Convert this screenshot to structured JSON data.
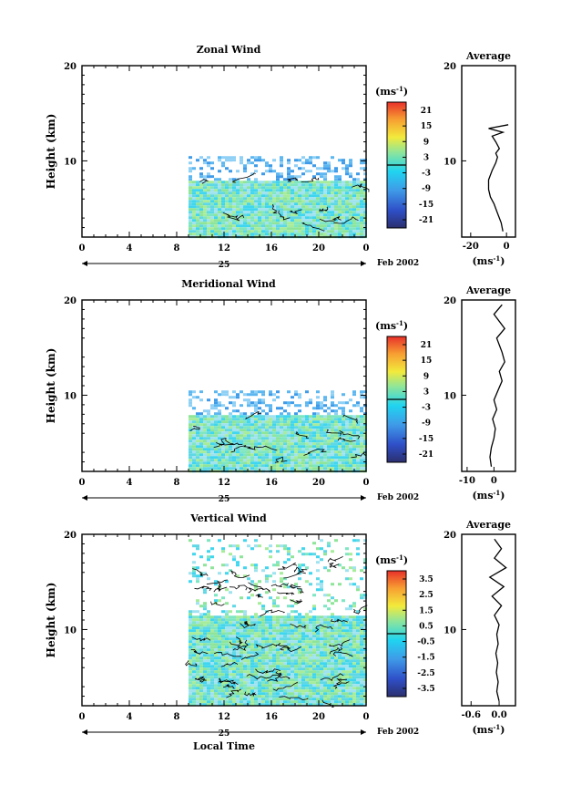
{
  "chart_data": [
    {
      "type": "heatmap",
      "title": "Zonal Wind",
      "ylabel": "Height (km)",
      "x_ticks": [
        "0",
        "4",
        "8",
        "12",
        "16",
        "20",
        "0"
      ],
      "y_ticks": [
        "20",
        "10"
      ],
      "xlim": [
        0,
        24
      ],
      "ylim": [
        2,
        20
      ],
      "day_label": "25",
      "date_label": "Feb 2002",
      "data_start_hour": 9,
      "data_max_height_km": 10.5,
      "colorbar": {
        "unit_prefix": "(ms",
        "unit_exp": "-1",
        "unit_suffix": ")",
        "ticks": [
          "21",
          "15",
          "9",
          "3",
          "-3",
          "-9",
          "-15",
          "-21"
        ]
      },
      "average": {
        "title": "Average",
        "x_ticks": [
          "-20",
          "0"
        ],
        "y_ticks": [
          "20",
          "10"
        ],
        "xlim": [
          -25,
          5
        ],
        "unit_prefix": "(ms",
        "unit_exp": "-1",
        "unit_suffix": ")",
        "profile": [
          [
            -2,
            2.6
          ],
          [
            -3,
            3.5
          ],
          [
            -5,
            4.5
          ],
          [
            -7,
            5.5
          ],
          [
            -9,
            6.2
          ],
          [
            -10,
            7
          ],
          [
            -10,
            8
          ],
          [
            -8,
            9
          ],
          [
            -6,
            9.8
          ],
          [
            -5,
            10.4
          ],
          [
            -6,
            10.8
          ],
          [
            -4,
            11.3
          ],
          [
            -6,
            12
          ],
          [
            -8,
            12.6
          ],
          [
            -2,
            13
          ],
          [
            -10,
            13.4
          ],
          [
            1,
            13.8
          ]
        ]
      }
    },
    {
      "type": "heatmap",
      "title": "Meridional Wind",
      "ylabel": "Height (km)",
      "x_ticks": [
        "0",
        "4",
        "8",
        "12",
        "16",
        "20",
        "0"
      ],
      "y_ticks": [
        "20",
        "10"
      ],
      "xlim": [
        0,
        24
      ],
      "ylim": [
        2,
        20
      ],
      "day_label": "25",
      "date_label": "Feb 2002",
      "data_start_hour": 9,
      "data_max_height_km": 10.5,
      "colorbar": {
        "unit_prefix": "(ms",
        "unit_exp": "-1",
        "unit_suffix": ")",
        "ticks": [
          "21",
          "15",
          "9",
          "3",
          "-3",
          "-9",
          "-15",
          "-21"
        ]
      },
      "average": {
        "title": "Average",
        "x_ticks": [
          "-10",
          "0"
        ],
        "y_ticks": [
          "20",
          "10"
        ],
        "xlim": [
          -12,
          8
        ],
        "unit_prefix": "(ms",
        "unit_exp": "-1",
        "unit_suffix": ")",
        "profile": [
          [
            -1,
            2.5
          ],
          [
            -1.5,
            3.5
          ],
          [
            -1,
            4.5
          ],
          [
            0,
            5.5
          ],
          [
            0.5,
            6.5
          ],
          [
            -0.5,
            7.5
          ],
          [
            1,
            8.5
          ],
          [
            0,
            9.5
          ],
          [
            1.5,
            10.5
          ],
          [
            3,
            11.5
          ],
          [
            2,
            12.5
          ],
          [
            4,
            13.5
          ],
          [
            3,
            14.5
          ],
          [
            1,
            16
          ],
          [
            4,
            17
          ],
          [
            0,
            18.5
          ],
          [
            3,
            19.5
          ]
        ]
      }
    },
    {
      "type": "heatmap",
      "title": "Vertical Wind",
      "ylabel": "Height (km)",
      "xlabel": "Local Time",
      "x_ticks": [
        "0",
        "4",
        "8",
        "12",
        "16",
        "20",
        "0"
      ],
      "y_ticks": [
        "20",
        "10"
      ],
      "xlim": [
        0,
        24
      ],
      "ylim": [
        2,
        20
      ],
      "day_label": "25",
      "date_label": "Feb 2002",
      "data_start_hour": 9,
      "data_max_height_km": 19.5,
      "colorbar": {
        "unit_prefix": "(ms",
        "unit_exp": "-1",
        "unit_suffix": ")",
        "ticks": [
          "3.5",
          "2.5",
          "1.5",
          "0.5",
          "-0.5",
          "-1.5",
          "-2.5",
          "-3.5"
        ]
      },
      "average": {
        "title": "Average",
        "x_ticks": [
          "-0.6",
          "0.0"
        ],
        "y_ticks": [
          "20",
          "10"
        ],
        "xlim": [
          -0.8,
          0.35
        ],
        "unit_prefix": "(ms",
        "unit_exp": "-1",
        "unit_suffix": ")",
        "profile": [
          [
            0.0,
            2.5
          ],
          [
            -0.05,
            3.5
          ],
          [
            -0.02,
            4.5
          ],
          [
            -0.06,
            5.5
          ],
          [
            -0.03,
            6.5
          ],
          [
            -0.07,
            7.5
          ],
          [
            -0.02,
            8.5
          ],
          [
            -0.05,
            9.5
          ],
          [
            0.0,
            10.5
          ],
          [
            -0.1,
            11.5
          ],
          [
            0.05,
            12.5
          ],
          [
            -0.15,
            13.5
          ],
          [
            0.1,
            14.5
          ],
          [
            -0.2,
            15.5
          ],
          [
            0.15,
            16.5
          ],
          [
            -0.1,
            17.5
          ],
          [
            0.05,
            18.5
          ],
          [
            -0.1,
            19.5
          ]
        ]
      }
    }
  ]
}
